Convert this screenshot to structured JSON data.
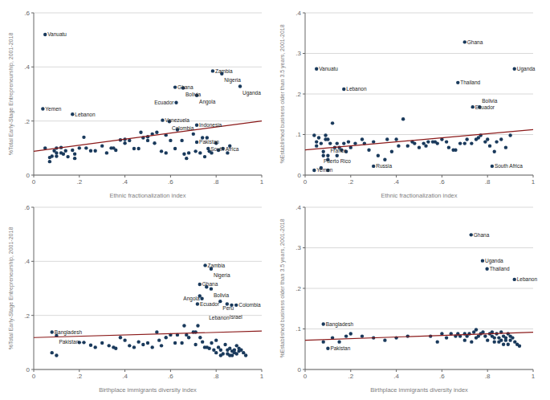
{
  "chart_data": [
    {
      "type": "scatter",
      "x_label": "Ethnic fractionalization index",
      "y_label": "%Total Early-Stage Entrepreneurship, 2001-2018",
      "xlim": [
        0,
        1
      ],
      "ylim": [
        0,
        0.6
      ],
      "xticks": [
        0,
        {
          "value": 0.2,
          "label": ".2"
        },
        {
          "value": 0.4,
          "label": ".4"
        },
        {
          "value": 0.6,
          "label": ".6"
        },
        {
          "value": 0.8,
          "label": ".8"
        },
        1
      ],
      "yticks": [
        0,
        {
          "value": 0.2,
          "label": ".2"
        },
        {
          "value": 0.4,
          "label": ".4"
        },
        {
          "value": 0.6,
          "label": ".6"
        }
      ],
      "grid": true,
      "series": [
        {
          "type": "scatter",
          "color": "#1a3a5c",
          "x": [
            0.05,
            0.04,
            0.17,
            0.62,
            0.655,
            0.715,
            0.625,
            0.565,
            0.595,
            0.715,
            0.715,
            0.765,
            0.785,
            0.825,
            0.905,
            0.05,
            0.07,
            0.07,
            0.08,
            0.09,
            0.1,
            0.1,
            0.1,
            0.12,
            0.12,
            0.13,
            0.14,
            0.15,
            0.17,
            0.18,
            0.18,
            0.2,
            0.22,
            0.23,
            0.25,
            0.27,
            0.3,
            0.32,
            0.34,
            0.35,
            0.36,
            0.38,
            0.4,
            0.4,
            0.42,
            0.44,
            0.46,
            0.47,
            0.48,
            0.5,
            0.5,
            0.52,
            0.53,
            0.54,
            0.56,
            0.58,
            0.58,
            0.6,
            0.62,
            0.63,
            0.65,
            0.66,
            0.67,
            0.68,
            0.7,
            0.71,
            0.73,
            0.74,
            0.75,
            0.76,
            0.77,
            0.78,
            0.8,
            0.81,
            0.83,
            0.85,
            0.86
          ],
          "values": [
            0.52,
            0.245,
            0.225,
            0.325,
            0.322,
            0.295,
            0.268,
            0.203,
            0.198,
            0.185,
            0.122,
            0.098,
            0.385,
            0.375,
            0.328,
            0.1,
            0.065,
            0.05,
            0.07,
            0.09,
            0.1,
            0.07,
            0.082,
            0.082,
            0.102,
            0.078,
            0.09,
            0.068,
            0.092,
            0.062,
            0.078,
            0.1,
            0.14,
            0.1,
            0.09,
            0.09,
            0.108,
            0.082,
            0.1,
            0.1,
            0.092,
            0.13,
            0.118,
            0.132,
            0.128,
            0.098,
            0.098,
            0.158,
            0.138,
            0.128,
            0.142,
            0.152,
            0.118,
            0.158,
            0.088,
            0.082,
            0.148,
            0.128,
            0.098,
            0.168,
            0.128,
            0.078,
            0.062,
            0.082,
            0.152,
            0.088,
            0.082,
            0.138,
            0.068,
            0.138,
            0.088,
            0.082,
            0.118,
            0.092,
            0.098,
            0.082,
            0.108
          ]
        },
        {
          "type": "line",
          "color": "#8b1a1a",
          "x": [
            0.0,
            1.0
          ],
          "values": [
            0.088,
            0.2
          ]
        }
      ],
      "annotations": [
        {
          "x": 0.05,
          "y": 0.52,
          "text": "Vanuatu"
        },
        {
          "x": 0.04,
          "y": 0.245,
          "text": "Yemen"
        },
        {
          "x": 0.17,
          "y": 0.225,
          "text": "Lebanon"
        },
        {
          "x": 0.62,
          "y": 0.325,
          "text": "Ghana"
        },
        {
          "x": 0.655,
          "y": 0.322,
          "text": "Bolivia"
        },
        {
          "x": 0.715,
          "y": 0.295,
          "text": "Angola"
        },
        {
          "x": 0.625,
          "y": 0.268,
          "text": "Ecuador"
        },
        {
          "x": 0.565,
          "y": 0.203,
          "text": "Venezuela"
        },
        {
          "x": 0.595,
          "y": 0.198,
          "text": "Colombia"
        },
        {
          "x": 0.715,
          "y": 0.185,
          "text": "Indonesia"
        },
        {
          "x": 0.715,
          "y": 0.122,
          "text": "Pakistan"
        },
        {
          "x": 0.765,
          "y": 0.098,
          "text": "South Africa"
        },
        {
          "x": 0.785,
          "y": 0.385,
          "text": "Zambia"
        },
        {
          "x": 0.825,
          "y": 0.375,
          "text": "Nigeria"
        },
        {
          "x": 0.905,
          "y": 0.328,
          "text": "Uganda"
        }
      ]
    },
    {
      "type": "scatter",
      "x_label": "Ethnic fractionalization index",
      "y_label": "%Established business older than 3.5 years, 2001-2018",
      "xlim": [
        0,
        1
      ],
      "ylim": [
        0,
        0.4
      ],
      "xticks": [
        0,
        {
          "value": 0.2,
          "label": ".2"
        },
        {
          "value": 0.4,
          "label": ".4"
        },
        {
          "value": 0.6,
          "label": ".6"
        },
        {
          "value": 0.8,
          "label": ".8"
        },
        1
      ],
      "yticks": [
        0,
        {
          "value": 0.1,
          "label": ".1"
        },
        {
          "value": 0.2,
          "label": ".2"
        },
        {
          "value": 0.3,
          "label": ".3"
        },
        {
          "value": 0.4,
          "label": ".4"
        }
      ],
      "grid": true,
      "series": [
        {
          "type": "scatter",
          "color": "#1a3a5c",
          "x": [
            0.05,
            0.17,
            0.7,
            0.67,
            0.735,
            0.765,
            0.918,
            0.04,
            0.07,
            0.1,
            0.3,
            0.82,
            0.04,
            0.05,
            0.05,
            0.06,
            0.07,
            0.08,
            0.08,
            0.09,
            0.09,
            0.1,
            0.1,
            0.1,
            0.11,
            0.12,
            0.13,
            0.14,
            0.15,
            0.16,
            0.17,
            0.18,
            0.19,
            0.2,
            0.22,
            0.25,
            0.26,
            0.28,
            0.3,
            0.32,
            0.35,
            0.36,
            0.38,
            0.4,
            0.41,
            0.43,
            0.45,
            0.47,
            0.48,
            0.5,
            0.52,
            0.53,
            0.54,
            0.56,
            0.57,
            0.58,
            0.6,
            0.62,
            0.63,
            0.65,
            0.66,
            0.68,
            0.7,
            0.71,
            0.73,
            0.75,
            0.76,
            0.77,
            0.79,
            0.8,
            0.81,
            0.83,
            0.84,
            0.86,
            0.88,
            0.9,
            0.14
          ],
          "values": [
            0.262,
            0.212,
            0.328,
            0.228,
            0.168,
            0.168,
            0.262,
            0.012,
            0.018,
            0.012,
            0.022,
            0.022,
            0.098,
            0.082,
            0.072,
            0.092,
            0.078,
            0.058,
            0.048,
            0.098,
            0.088,
            0.088,
            0.048,
            0.038,
            0.078,
            0.128,
            0.068,
            0.078,
            0.068,
            0.062,
            0.078,
            0.058,
            0.082,
            0.068,
            0.078,
            0.088,
            0.078,
            0.062,
            0.082,
            0.048,
            0.038,
            0.088,
            0.058,
            0.088,
            0.072,
            0.138,
            0.072,
            0.082,
            0.078,
            0.068,
            0.078,
            0.072,
            0.082,
            0.082,
            0.082,
            0.078,
            0.088,
            0.082,
            0.068,
            0.062,
            0.062,
            0.078,
            0.078,
            0.088,
            0.078,
            0.088,
            0.092,
            0.098,
            0.082,
            0.088,
            0.072,
            0.058,
            0.082,
            0.088,
            0.068,
            0.098,
            0.048
          ]
        },
        {
          "type": "line",
          "color": "#8b1a1a",
          "x": [
            0.0,
            1.0
          ],
          "values": [
            0.062,
            0.112
          ]
        }
      ],
      "annotations": [
        {
          "x": 0.05,
          "y": 0.262,
          "text": "Vanuatu"
        },
        {
          "x": 0.17,
          "y": 0.212,
          "text": "Lebanon"
        },
        {
          "x": 0.7,
          "y": 0.328,
          "text": "Ghana"
        },
        {
          "x": 0.67,
          "y": 0.228,
          "text": "Thailand"
        },
        {
          "x": 0.735,
          "y": 0.168,
          "text": "Ecuador"
        },
        {
          "x": 0.765,
          "y": 0.168,
          "text": "Bolivia"
        },
        {
          "x": 0.918,
          "y": 0.262,
          "text": "Uganda"
        },
        {
          "x": 0.04,
          "y": 0.012,
          "text": "Yemen"
        },
        {
          "x": 0.07,
          "y": 0.018,
          "text": "Puerto Rico"
        },
        {
          "x": 0.1,
          "y": 0.012,
          "text": "France"
        },
        {
          "x": 0.3,
          "y": 0.022,
          "text": "Russia"
        },
        {
          "x": 0.82,
          "y": 0.022,
          "text": "South Africa"
        }
      ]
    },
    {
      "type": "scatter",
      "x_label": "Birthplace immigrants diversity index",
      "y_label": "%Total Early-Stage Entrepreneurship, 2001-2018",
      "xlim": [
        0,
        1
      ],
      "ylim": [
        0,
        0.6
      ],
      "xticks": [
        0,
        {
          "value": 0.2,
          "label": ".2"
        },
        {
          "value": 0.4,
          "label": ".4"
        },
        {
          "value": 0.6,
          "label": ".6"
        },
        {
          "value": 0.8,
          "label": ".8"
        },
        1
      ],
      "yticks": [
        0,
        {
          "value": 0.2,
          "label": ".2"
        },
        {
          "value": 0.4,
          "label": ".4"
        },
        {
          "value": 0.6,
          "label": ".6"
        }
      ],
      "grid": true,
      "series": [
        {
          "type": "scatter",
          "color": "#1a3a5c",
          "x": [
            0.08,
            0.1,
            0.752,
            0.778,
            0.728,
            0.758,
            0.778,
            0.728,
            0.738,
            0.718,
            0.818,
            0.848,
            0.868,
            0.888,
            0.2,
            0.22,
            0.25,
            0.27,
            0.3,
            0.33,
            0.35,
            0.36,
            0.38,
            0.4,
            0.42,
            0.44,
            0.46,
            0.48,
            0.5,
            0.52,
            0.54,
            0.55,
            0.56,
            0.58,
            0.6,
            0.62,
            0.63,
            0.65,
            0.66,
            0.67,
            0.68,
            0.7,
            0.71,
            0.71,
            0.72,
            0.73,
            0.74,
            0.75,
            0.76,
            0.77,
            0.78,
            0.79,
            0.8,
            0.8,
            0.81,
            0.82,
            0.82,
            0.83,
            0.84,
            0.85,
            0.85,
            0.86,
            0.86,
            0.87,
            0.87,
            0.88,
            0.88,
            0.89,
            0.89,
            0.9,
            0.9,
            0.91,
            0.92,
            0.93,
            0.08,
            0.1
          ],
          "values": [
            0.138,
            0.125,
            0.385,
            0.372,
            0.315,
            0.305,
            0.298,
            0.272,
            0.262,
            0.242,
            0.252,
            0.242,
            0.238,
            0.238,
            0.1,
            0.1,
            0.09,
            0.082,
            0.098,
            0.088,
            0.082,
            0.078,
            0.118,
            0.108,
            0.088,
            0.082,
            0.102,
            0.092,
            0.098,
            0.082,
            0.138,
            0.108,
            0.088,
            0.118,
            0.128,
            0.098,
            0.128,
            0.098,
            0.162,
            0.128,
            0.118,
            0.138,
            0.092,
            0.138,
            0.162,
            0.118,
            0.102,
            0.082,
            0.082,
            0.078,
            0.098,
            0.072,
            0.108,
            0.062,
            0.082,
            0.072,
            0.052,
            0.058,
            0.092,
            0.072,
            0.058,
            0.052,
            0.078,
            0.068,
            0.052,
            0.062,
            0.072,
            0.088,
            0.058,
            0.078,
            0.068,
            0.072,
            0.062,
            0.052,
            0.062,
            0.052
          ]
        },
        {
          "type": "line",
          "color": "#8b1a1a",
          "x": [
            0.0,
            1.0
          ],
          "values": [
            0.118,
            0.142
          ]
        }
      ],
      "annotations": [
        {
          "x": 0.08,
          "y": 0.138,
          "text": "Bangladesh"
        },
        {
          "x": 0.1,
          "y": 0.125,
          "text": "Pakistan"
        },
        {
          "x": 0.752,
          "y": 0.385,
          "text": "Zambia"
        },
        {
          "x": 0.778,
          "y": 0.372,
          "text": "Nigeria"
        },
        {
          "x": 0.728,
          "y": 0.315,
          "text": "Ghana"
        },
        {
          "x": 0.778,
          "y": 0.298,
          "text": "Bolivia"
        },
        {
          "x": 0.738,
          "y": 0.262,
          "text": "Angola"
        },
        {
          "x": 0.718,
          "y": 0.242,
          "text": "Ecuador"
        },
        {
          "x": 0.818,
          "y": 0.252,
          "text": "Peru"
        },
        {
          "x": 0.848,
          "y": 0.242,
          "text": "Israel"
        },
        {
          "x": 0.868,
          "y": 0.238,
          "text": "Lebanon"
        },
        {
          "x": 0.888,
          "y": 0.238,
          "text": "Colombia"
        }
      ]
    },
    {
      "type": "scatter",
      "x_label": "Birthplace immigrants diversity index",
      "y_label": "%Established business older than 3.5 years, 2001-2018",
      "xlim": [
        0,
        1
      ],
      "ylim": [
        0,
        0.4
      ],
      "xticks": [
        0,
        {
          "value": 0.2,
          "label": ".2"
        },
        {
          "value": 0.4,
          "label": ".4"
        },
        {
          "value": 0.6,
          "label": ".6"
        },
        {
          "value": 0.8,
          "label": ".8"
        },
        1
      ],
      "yticks": [
        0,
        {
          "value": 0.1,
          "label": ".1"
        },
        {
          "value": 0.2,
          "label": ".2"
        },
        {
          "value": 0.3,
          "label": ".3"
        },
        {
          "value": 0.4,
          "label": ".4"
        }
      ],
      "grid": true,
      "series": [
        {
          "type": "scatter",
          "color": "#1a3a5c",
          "x": [
            0.08,
            0.1,
            0.728,
            0.778,
            0.798,
            0.918,
            0.55,
            0.58,
            0.6,
            0.62,
            0.64,
            0.66,
            0.67,
            0.68,
            0.7,
            0.7,
            0.71,
            0.72,
            0.73,
            0.74,
            0.75,
            0.75,
            0.76,
            0.77,
            0.78,
            0.79,
            0.8,
            0.81,
            0.82,
            0.82,
            0.83,
            0.83,
            0.84,
            0.85,
            0.85,
            0.86,
            0.86,
            0.87,
            0.87,
            0.88,
            0.88,
            0.89,
            0.89,
            0.9,
            0.9,
            0.91,
            0.92,
            0.93,
            0.94,
            0.08,
            0.12,
            0.15,
            0.18,
            0.2,
            0.25,
            0.3,
            0.35,
            0.4,
            0.45
          ],
          "values": [
            0.112,
            0.052,
            0.332,
            0.268,
            0.248,
            0.222,
            0.082,
            0.068,
            0.088,
            0.078,
            0.088,
            0.082,
            0.088,
            0.082,
            0.088,
            0.072,
            0.082,
            0.088,
            0.068,
            0.092,
            0.078,
            0.098,
            0.082,
            0.088,
            0.092,
            0.082,
            0.072,
            0.088,
            0.082,
            0.092,
            0.078,
            0.068,
            0.088,
            0.078,
            0.068,
            0.092,
            0.072,
            0.082,
            0.062,
            0.078,
            0.072,
            0.088,
            0.062,
            0.082,
            0.072,
            0.078,
            0.068,
            0.062,
            0.058,
            0.068,
            0.078,
            0.068,
            0.082,
            0.088,
            0.082,
            0.078,
            0.072,
            0.078,
            0.082
          ]
        },
        {
          "type": "line",
          "color": "#8b1a1a",
          "x": [
            0.0,
            1.0
          ],
          "values": [
            0.072,
            0.092
          ]
        }
      ],
      "annotations": [
        {
          "x": 0.08,
          "y": 0.112,
          "text": "Bangladesh"
        },
        {
          "x": 0.1,
          "y": 0.052,
          "text": "Pakistan"
        },
        {
          "x": 0.728,
          "y": 0.332,
          "text": "Ghana"
        },
        {
          "x": 0.778,
          "y": 0.268,
          "text": "Uganda"
        },
        {
          "x": 0.798,
          "y": 0.248,
          "text": "Thailand"
        },
        {
          "x": 0.918,
          "y": 0.222,
          "text": "Lebanon"
        }
      ]
    }
  ]
}
